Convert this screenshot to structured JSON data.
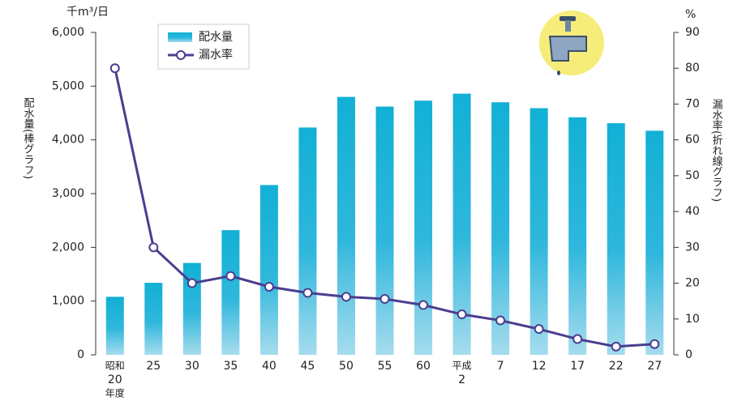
{
  "chart_data": {
    "type": "bar-line",
    "y_unit": "千m³/日",
    "y2_unit": "%",
    "y_label": "配水量(棒グラフ)",
    "y2_label": "漏水率(折れ線グラフ)",
    "categories": [
      [
        "昭和",
        "20",
        "年度"
      ],
      [
        "25"
      ],
      [
        "30"
      ],
      [
        "35"
      ],
      [
        "40"
      ],
      [
        "45"
      ],
      [
        "50"
      ],
      [
        "55"
      ],
      [
        "60"
      ],
      [
        "平成",
        "2"
      ],
      [
        "7"
      ],
      [
        "12"
      ],
      [
        "17"
      ],
      [
        "22"
      ],
      [
        "27"
      ]
    ],
    "series": [
      {
        "name": "配水量",
        "type": "bar",
        "color": "#1cb3d6",
        "values": [
          1080,
          1340,
          1710,
          2320,
          3160,
          4230,
          4800,
          4620,
          4730,
          4860,
          4700,
          4590,
          4420,
          4310,
          4170
        ]
      },
      {
        "name": "漏水率",
        "type": "line",
        "axis": "y2",
        "color": "#4b3d8f",
        "values": [
          80,
          30,
          20,
          22,
          19,
          17.3,
          16.2,
          15.6,
          13.9,
          11.3,
          9.6,
          7.2,
          4.4,
          2.3,
          3.0
        ]
      }
    ],
    "ylim": [
      0,
      6000
    ],
    "yticks": [
      0,
      {
        "value": 1000,
        "label": "1,000"
      },
      {
        "value": 2000,
        "label": "2,000"
      },
      {
        "value": 3000,
        "label": "3,000"
      },
      {
        "value": 4000,
        "label": "4,000"
      },
      {
        "value": 5000,
        "label": "5,000"
      },
      {
        "value": 6000,
        "label": "6,000"
      }
    ],
    "y2lim": [
      0,
      90
    ],
    "y2ticks": [
      0,
      10,
      20,
      30,
      40,
      50,
      60,
      70,
      80,
      90
    ]
  }
}
